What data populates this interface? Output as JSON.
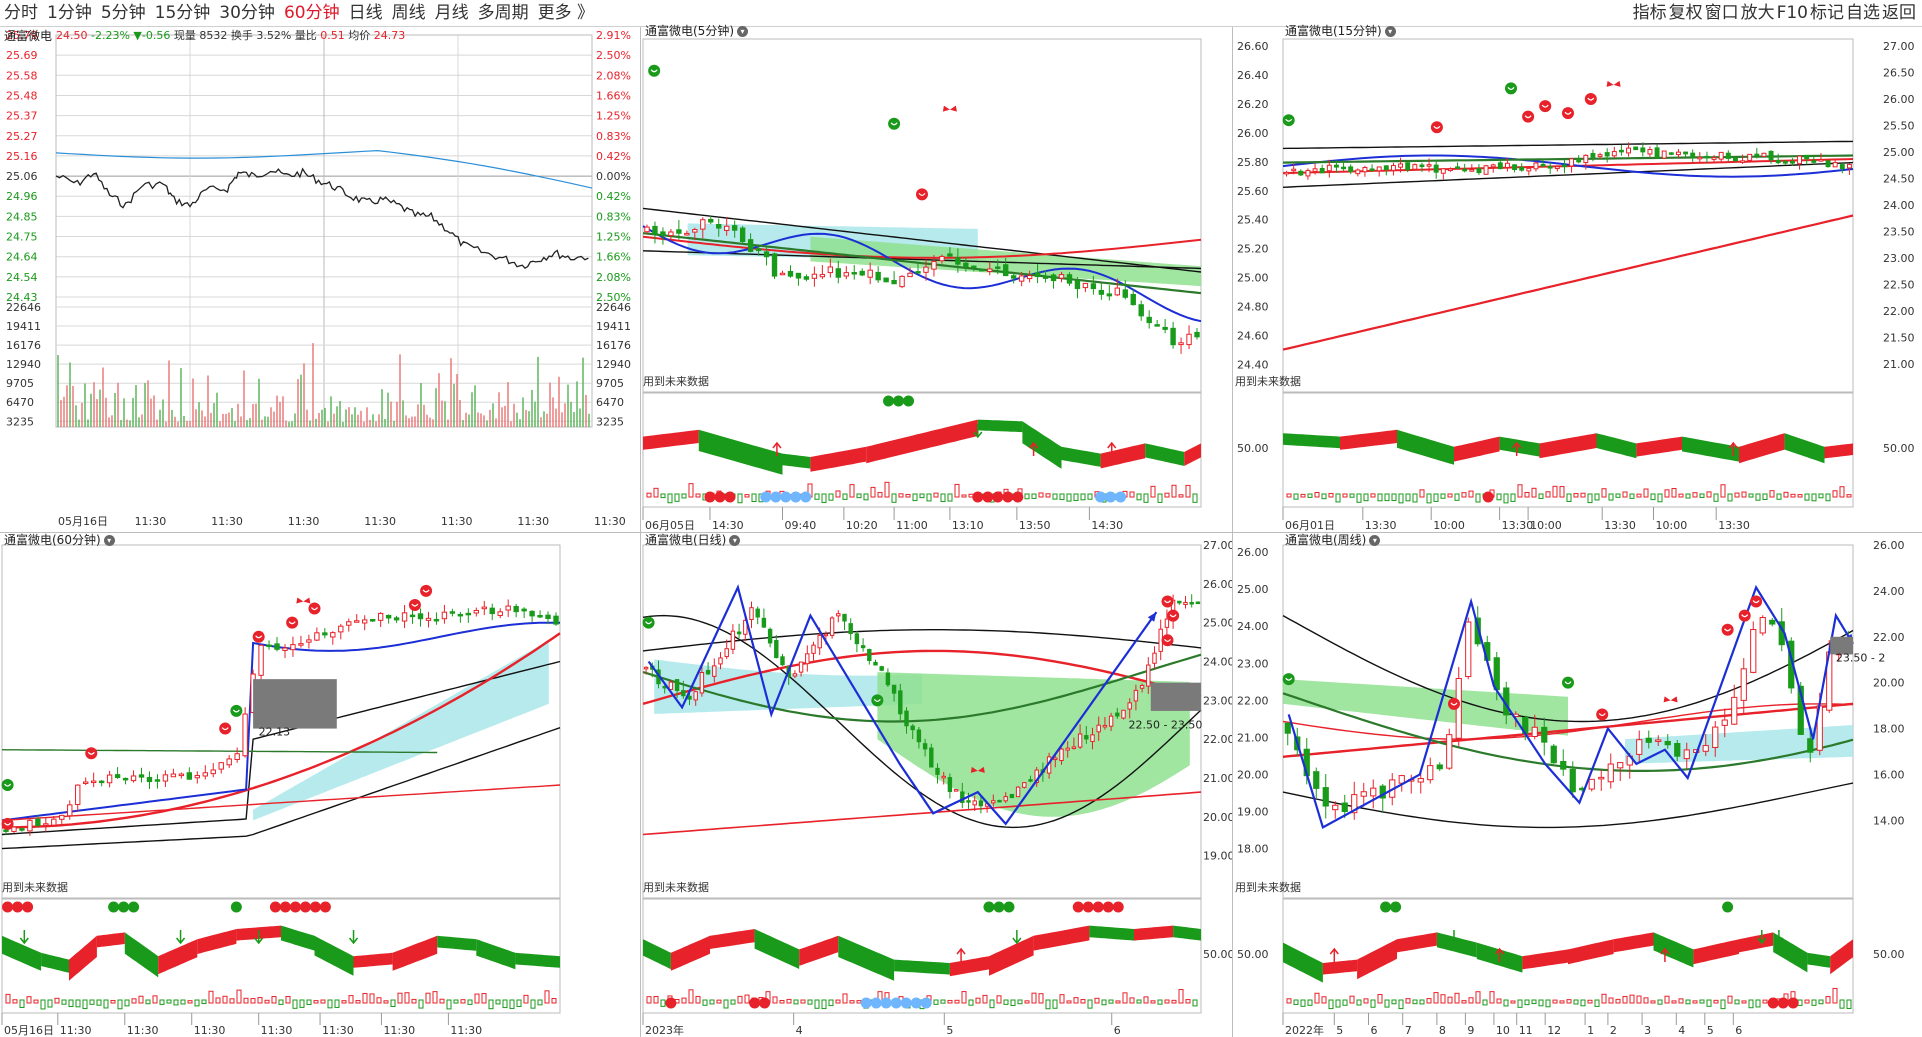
{
  "toolbar": {
    "tabs": [
      "分时",
      "1分钟",
      "5分钟",
      "15分钟",
      "30分钟",
      "60分钟",
      "日线",
      "周线",
      "月线",
      "多周期",
      "更多 》"
    ],
    "active_tab": "60分钟",
    "right_buttons": [
      "指标",
      "复权",
      "窗口",
      "放大",
      "F10",
      "标记",
      "自选",
      "返回"
    ]
  },
  "intraday": {
    "stock_name": "通富微电",
    "price": "24.50",
    "change_pct": "-2.23%",
    "change": "▼-0.56",
    "volume_label": "现量",
    "volume": "8532",
    "turnover_label": "换手",
    "turnover": "3.52%",
    "ratio_label": "量比",
    "ratio": "0.51",
    "avg_label": "均价",
    "avg": "24.73",
    "left_prices": [
      "25.79",
      "25.69",
      "25.58",
      "25.48",
      "25.37",
      "25.27",
      "25.16",
      "25.06",
      "24.96",
      "24.85",
      "24.75",
      "24.64",
      "24.54",
      "24.43"
    ],
    "right_pcts": [
      "2.91%",
      "2.50%",
      "2.08%",
      "1.66%",
      "1.25%",
      "0.83%",
      "0.42%",
      "0.00%",
      "0.42%",
      "0.83%",
      "1.25%",
      "1.66%",
      "2.08%",
      "2.50%"
    ],
    "vol_ticks": [
      "22646",
      "19411",
      "16176",
      "12940",
      "9705",
      "6470",
      "3235"
    ],
    "x_labels": [
      "05月16日",
      "11:30",
      "11:30",
      "11:30",
      "11:30",
      "11:30",
      "11:30",
      "11:30"
    ]
  },
  "panes": {
    "m5": {
      "title": "通富微电(5分钟)",
      "future_label": "用到未来数据",
      "x_labels": [
        "06月05日",
        "14:30",
        "09:40",
        "10:20",
        "11:00",
        "13:10",
        "13:50",
        "14:30"
      ]
    },
    "m15": {
      "title": "通富微电(15分钟)",
      "future_label": "用到未来数据",
      "price_ticks": [
        "26.60",
        "26.40",
        "26.20",
        "26.00",
        "25.80",
        "25.60",
        "25.40",
        "25.20",
        "25.00",
        "24.80",
        "24.60",
        "24.40"
      ],
      "right_ticks": [
        "27.00",
        "26.50",
        "26.00",
        "25.50",
        "25.00",
        "24.50",
        "24.00",
        "23.50",
        "23.00",
        "22.50",
        "22.00",
        "21.50",
        "21.00"
      ],
      "ind_tick": "50.00",
      "ind_tick_right": "50.00",
      "x_labels": [
        "06月01日",
        "13:30",
        "10:00",
        "13:30",
        "10:00",
        "13:30",
        "10:00",
        "13:30"
      ]
    },
    "m60": {
      "title": "通富微电(60分钟)",
      "future_label": "用到未来数据",
      "box_label": "22.13",
      "x_labels": [
        "05月16日",
        "11:30",
        "11:30",
        "11:30",
        "11:30",
        "11:30",
        "11:30",
        "11:30"
      ]
    },
    "day": {
      "title": "通富微电(日线)",
      "future_label": "用到未来数据",
      "price_ticks": [
        "27.00",
        "26.00",
        "25.00",
        "24.00",
        "23.00",
        "22.00",
        "21.00",
        "20.00",
        "19.00"
      ],
      "ind_tick": "50.00",
      "box_label": "22.50 - 23.50",
      "x_labels": [
        "2023年",
        "4",
        "5",
        "6"
      ]
    },
    "week": {
      "title": "通富微电(周线)",
      "future_label": "用到未来数据",
      "price_ticks": [
        "26.00",
        "25.00",
        "24.00",
        "23.00",
        "22.00",
        "21.00",
        "20.00",
        "19.00",
        "18.00"
      ],
      "right_ticks": [
        "26.00",
        "24.00",
        "22.00",
        "20.00",
        "18.00",
        "16.00",
        "14.00"
      ],
      "ind_tick": "50.00",
      "ind_tick_right": "50.00",
      "box_label": "23.50 - 2",
      "x_labels": [
        "2022年",
        "5",
        "6",
        "7",
        "8",
        "9",
        "10",
        "11",
        "12",
        "1",
        "2",
        "3",
        "4",
        "5",
        "6"
      ]
    }
  },
  "colors": {
    "up": "#e8222a",
    "down": "#199a1a",
    "ma_blue": "#1c2fd6",
    "cloud_green": "#8fe08f",
    "cloud_cyan": "#a9e6ea",
    "grid": "#d8d8d8"
  }
}
